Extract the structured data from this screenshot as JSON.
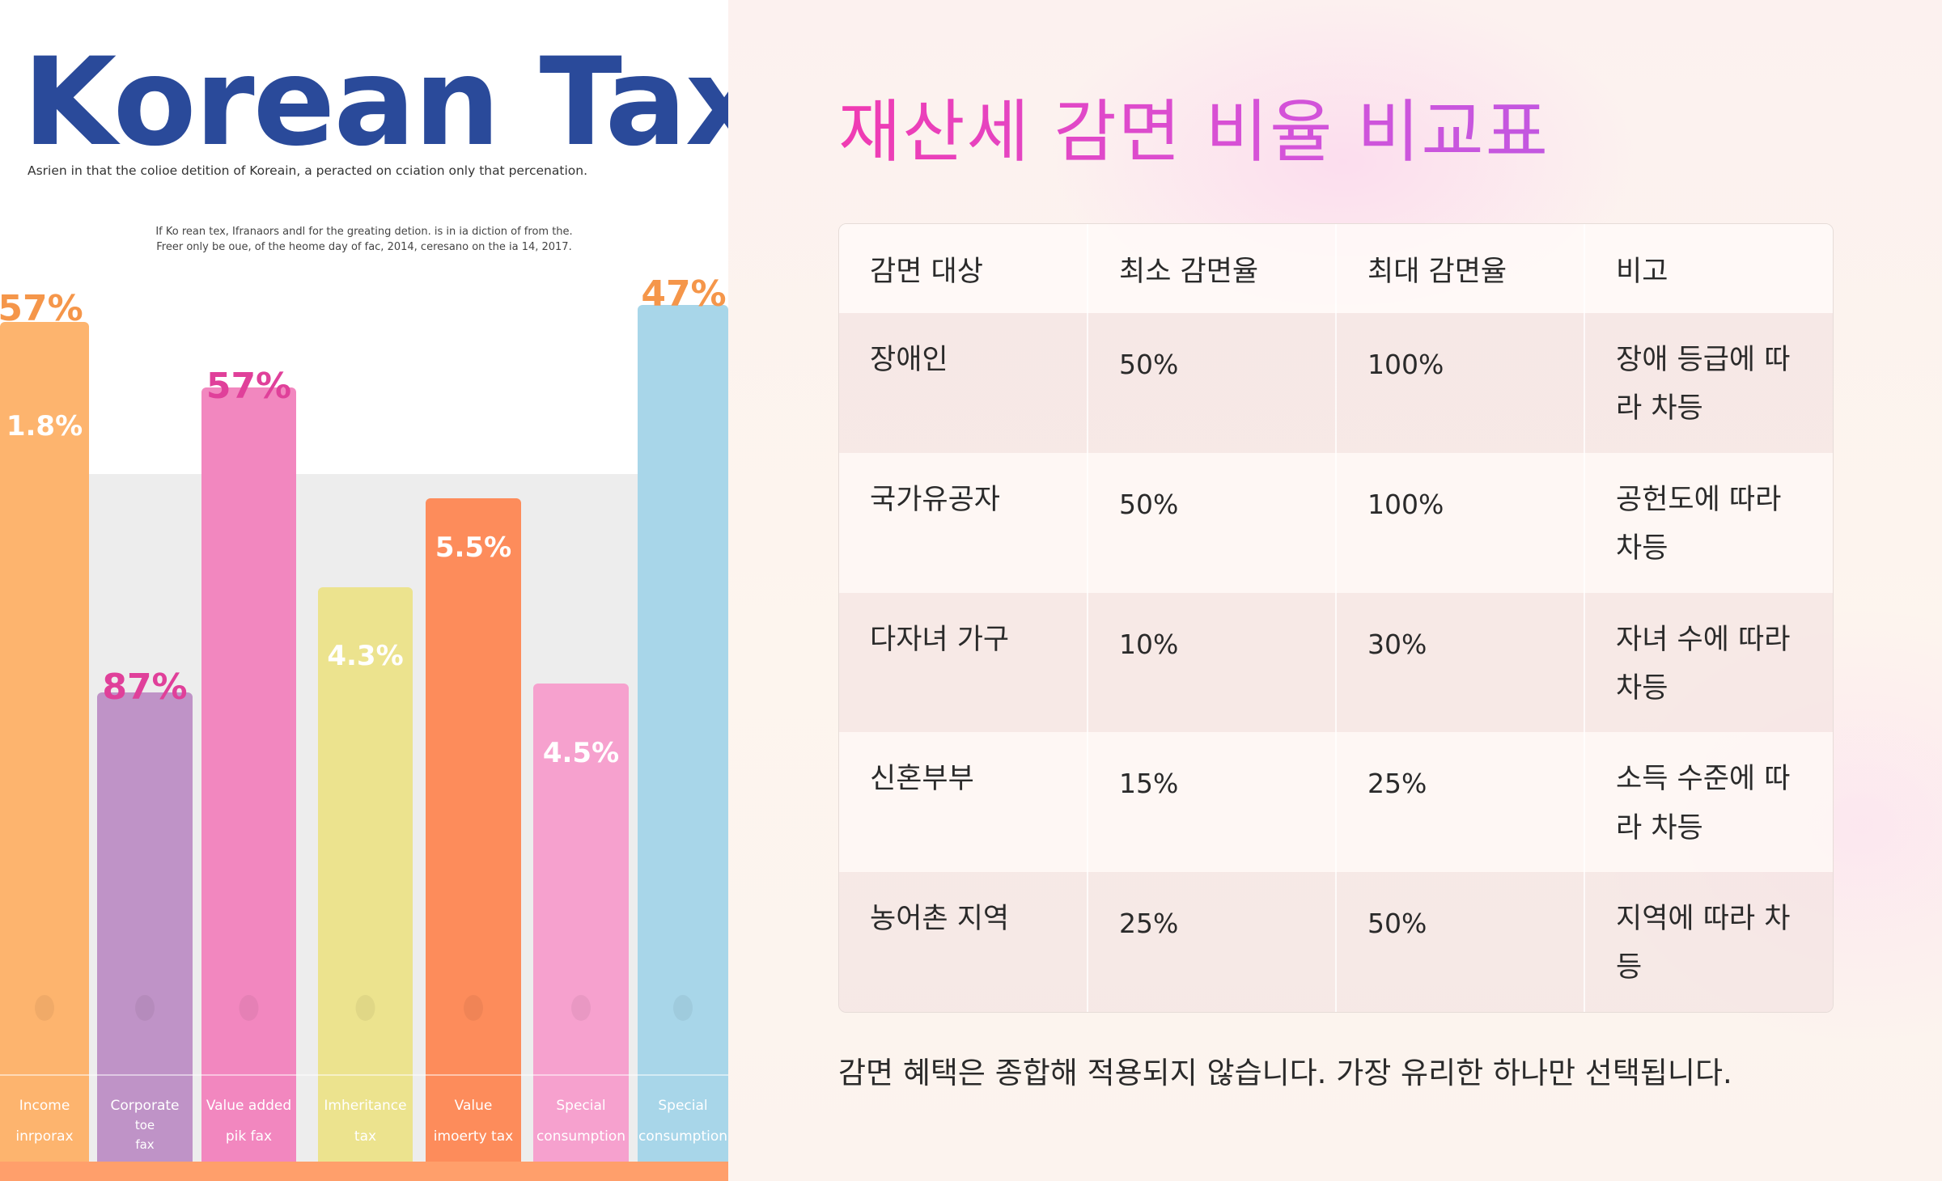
{
  "left_panel": {
    "title": "Korean Tax",
    "subtitle": "Asrien in that the colioe detition of Koreain, a peracted on cciation only that percenation.",
    "caption_line1": "If Ko rean tex, Ifranaors andl for the greating detion. is in ia diction of from the.",
    "caption_line2": "Freer only be oue, of the heome day of fac, 2014, ceresano on the ia 14, 2017.",
    "chart_data": {
      "type": "bar",
      "title": "",
      "xlabel": "",
      "ylabel": "",
      "categories": [
        [
          "Income",
          "inrporax"
        ],
        [
          "Corporate",
          "toe",
          "fax"
        ],
        [
          "Value added",
          "pik fax"
        ],
        [
          "Imheritance",
          "tax"
        ],
        [
          "Value",
          "imoerty tax"
        ],
        [
          "Special",
          "consumption"
        ],
        [
          "Special",
          "consumption"
        ]
      ],
      "outer_labels": [
        "57%",
        "87%",
        "57%",
        "",
        "",
        "",
        "47%"
      ],
      "inner_labels": [
        "1.8%",
        "",
        "",
        "4.3%",
        "5.5%",
        "4.5%",
        ""
      ],
      "colors": [
        "#fdb46e",
        "#bf93c7",
        "#f287bf",
        "#ece38e",
        "#fd8c5b",
        "#f6a1ce",
        "#a8d6e9"
      ],
      "label_colors": [
        "#f5964a",
        "#e0409a",
        "#e0409a",
        "#ffffff",
        "#ffffff",
        "#ffffff",
        "#f5964a"
      ]
    }
  },
  "right_panel": {
    "title": "재산세 감면 비율 비교표",
    "table": {
      "headers": [
        "감면 대상",
        "최소 감면율",
        "최대 감면율",
        "비고"
      ],
      "rows": [
        [
          "장애인",
          "50%",
          "100%",
          "장애 등급에 따라 차등"
        ],
        [
          "국가유공자",
          "50%",
          "100%",
          "공헌도에 따라 차등"
        ],
        [
          "다자녀 가구",
          "10%",
          "30%",
          "자녀 수에 따라 차등"
        ],
        [
          "신혼부부",
          "15%",
          "25%",
          "소득 수준에 따라 차등"
        ],
        [
          "농어촌 지역",
          "25%",
          "50%",
          "지역에 따라 차등"
        ]
      ]
    },
    "footnote": "감면 혜택은 종합해 적용되지 않습니다. 가장 유리한 하나만 선택됩니다."
  }
}
